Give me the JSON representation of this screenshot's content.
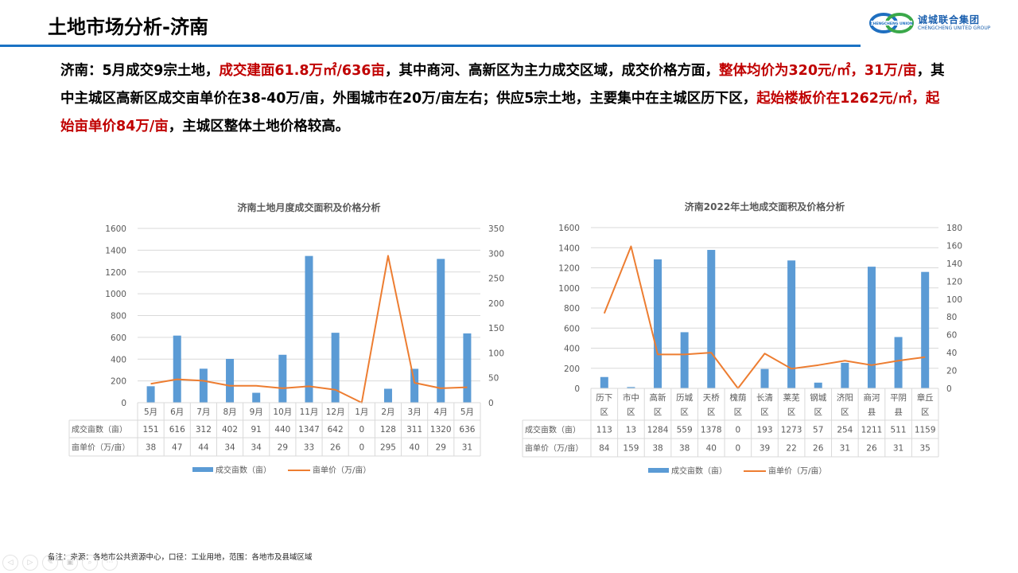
{
  "header": {
    "title": "土地市场分析-济南",
    "logo": {
      "cn": "诚城联合集团",
      "en": "CHENGCHENG UNITED GROUP",
      "badge": "CHENGCHENG UNION"
    }
  },
  "summary": {
    "segments": [
      {
        "text": "济南：5月成交9宗土地，",
        "red": false
      },
      {
        "text": "成交建面61.8万㎡/636亩",
        "red": true
      },
      {
        "text": "，其中商河、高新区为主力成交区域，成交价格方面，",
        "red": false
      },
      {
        "text": "整体均价为320元/㎡，31万/亩",
        "red": true
      },
      {
        "text": "，其中主城区高新区成交亩单价在38-40万/亩，外围城市在20万/亩左右；供应5宗土地，主要集中在主城区历下区，",
        "red": false
      },
      {
        "text": "起始楼板价在1262元/㎡，起始亩单价84万/亩",
        "red": true
      },
      {
        "text": "，主城区整体土地价格较高。",
        "red": false
      }
    ]
  },
  "colors": {
    "bar": "#5b9bd5",
    "line": "#ed7d31",
    "accent": "#1a72c4",
    "highlight": "#c00000"
  },
  "chart_data": [
    {
      "type": "bar+line",
      "title": "济南土地月度成交面积及价格分析",
      "categories": [
        "5月",
        "6月",
        "7月",
        "8月",
        "9月",
        "10月",
        "11月",
        "12月",
        "1月",
        "2月",
        "3月",
        "4月",
        "5月"
      ],
      "series": [
        {
          "name": "成交亩数（亩）",
          "type": "bar",
          "axis": "left",
          "values": [
            151,
            616,
            312,
            402,
            91,
            440,
            1347,
            642,
            0,
            128,
            311,
            1320,
            636
          ]
        },
        {
          "name": "亩单价（万/亩）",
          "type": "line",
          "axis": "right",
          "values": [
            38,
            47,
            44,
            34,
            34,
            29,
            33,
            26,
            0,
            295,
            40,
            29,
            31
          ]
        }
      ],
      "ylim_left": [
        0,
        1600
      ],
      "yticks_left": [
        0,
        200,
        400,
        600,
        800,
        1000,
        1200,
        1400,
        1600
      ],
      "ylim_right": [
        0,
        350
      ],
      "yticks_right": [
        0,
        50,
        100,
        150,
        200,
        250,
        300,
        350
      ],
      "grid": true,
      "legend_position": "bottom",
      "data_table": true
    },
    {
      "type": "bar+line",
      "title": "济南2022年土地成交面积及价格分析",
      "categories": [
        "历下区",
        "市中区",
        "高新区",
        "历城区",
        "天桥区",
        "槐荫区",
        "长清区",
        "莱芜区",
        "钢城区",
        "济阳区",
        "商河县",
        "平阴县",
        "章丘区"
      ],
      "categories_split": [
        [
          "历下",
          "区"
        ],
        [
          "市中",
          "区"
        ],
        [
          "高新",
          "区"
        ],
        [
          "历城",
          "区"
        ],
        [
          "天桥",
          "区"
        ],
        [
          "槐荫",
          "区"
        ],
        [
          "长清",
          "区"
        ],
        [
          "莱芜",
          "区"
        ],
        [
          "钢城",
          "区"
        ],
        [
          "济阳",
          "区"
        ],
        [
          "商河",
          "县"
        ],
        [
          "平阴",
          "县"
        ],
        [
          "章丘",
          "区"
        ]
      ],
      "series": [
        {
          "name": "成交亩数（亩）",
          "type": "bar",
          "axis": "left",
          "values": [
            113,
            13,
            1284,
            559,
            1378,
            0,
            193,
            1273,
            57,
            254,
            1211,
            511,
            1159
          ]
        },
        {
          "name": "亩单价（万/亩）",
          "type": "line",
          "axis": "right",
          "values": [
            84,
            159,
            38,
            38,
            40,
            0,
            39,
            22,
            26,
            31,
            26,
            31,
            35
          ]
        }
      ],
      "ylim_left": [
        0,
        1600
      ],
      "yticks_left": [
        0,
        200,
        400,
        600,
        800,
        1000,
        1200,
        1400,
        1600
      ],
      "ylim_right": [
        0,
        180
      ],
      "yticks_right": [
        0,
        20,
        40,
        60,
        80,
        100,
        120,
        140,
        160,
        180
      ],
      "grid": true,
      "legend_position": "bottom",
      "data_table": true
    }
  ],
  "table_labels": {
    "row1": "成交亩数（亩）",
    "row2": "亩单价（万/亩）"
  },
  "footnote": "备注：来源：各地市公共资源中心，口径：工业用地，范围：各地市及县域区域",
  "nav_buttons": [
    "previous-icon",
    "next-icon",
    "pen-icon",
    "slides-icon",
    "zoom-icon",
    "more-icon"
  ]
}
